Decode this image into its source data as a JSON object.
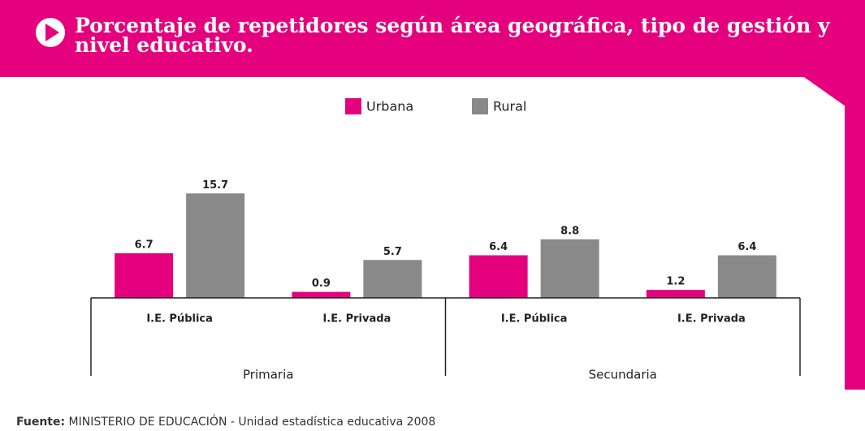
{
  "chart_data": {
    "type": "bar",
    "title": "Porcentaje de repetidores según área geográfica, tipo de gestión y nivel educativo.",
    "categories": [
      "I.E. Pública",
      "I.E. Privada",
      "I.E. Pública",
      "I.E. Privada"
    ],
    "groups": [
      "Primaria",
      "Secundaria"
    ],
    "series": [
      {
        "name": "Urbana",
        "color": "#e5007e",
        "values": [
          6.7,
          0.9,
          6.4,
          1.2
        ]
      },
      {
        "name": "Rural",
        "color": "#898989",
        "values": [
          15.7,
          5.7,
          8.8,
          6.4
        ]
      }
    ],
    "source_label": "Fuente:",
    "source": "MINISTERIO DE EDUCACIÓN - Unidad estadística educativa 2008"
  }
}
